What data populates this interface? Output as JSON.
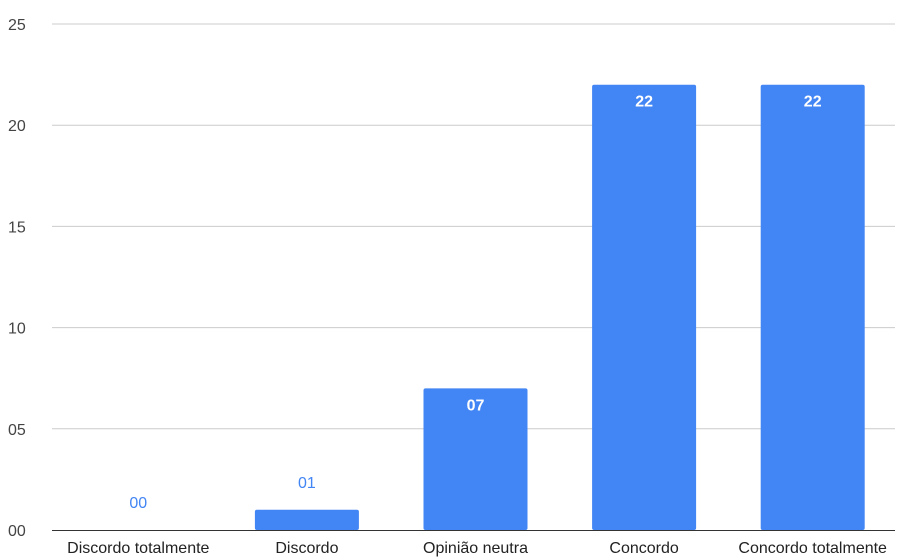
{
  "chart_data": {
    "type": "bar",
    "categories": [
      "Discordo totalmente",
      "Discordo",
      "Opinião neutra",
      "Concordo",
      "Concordo totalmente"
    ],
    "values": [
      0,
      1,
      7,
      22,
      22
    ],
    "data_labels": [
      "00",
      "01",
      "07",
      "22",
      "22"
    ],
    "y_ticks": [
      "00",
      "05",
      "10",
      "15",
      "20",
      "25"
    ],
    "ylim": [
      0,
      25
    ],
    "grid": true,
    "legend": "none",
    "bar_color": "#4285f4"
  }
}
